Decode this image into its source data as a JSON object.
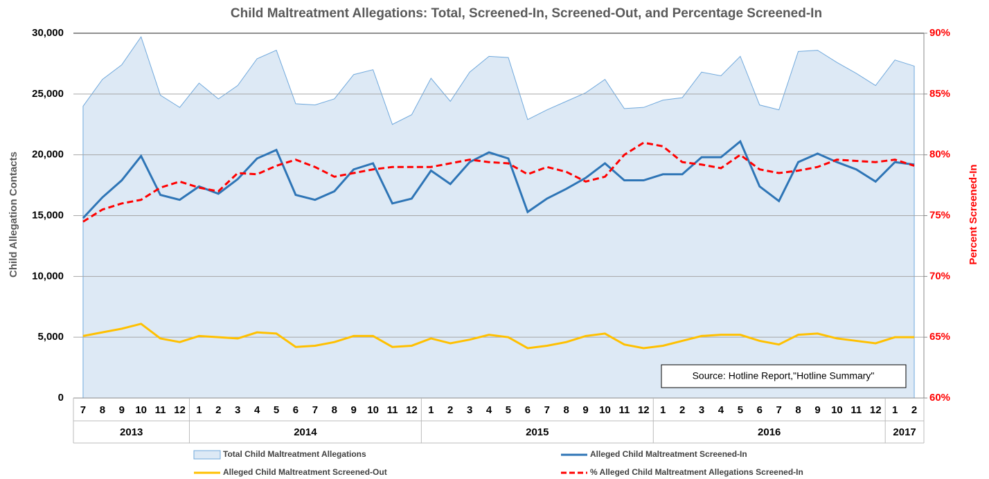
{
  "chart_data": {
    "type": "line",
    "title": "Child Maltreatment Allegations:  Total, Screened-In, Screened-Out, and Percentage Screened-In",
    "y_label": "Child Allegation Contacts",
    "y2_label": "Percent Screened-In",
    "annotation": "Source: Hotline Report,\"Hotline Summary\"",
    "categories": [
      "7",
      "8",
      "9",
      "10",
      "11",
      "12",
      "1",
      "2",
      "3",
      "4",
      "5",
      "6",
      "7",
      "8",
      "9",
      "10",
      "11",
      "12",
      "1",
      "2",
      "3",
      "4",
      "5",
      "6",
      "7",
      "8",
      "9",
      "10",
      "11",
      "12",
      "1",
      "2",
      "3",
      "4",
      "5",
      "6",
      "7",
      "8",
      "9",
      "10",
      "11",
      "12",
      "1",
      "2"
    ],
    "x_groups": [
      {
        "label": "2013",
        "count": 6
      },
      {
        "label": "2014",
        "count": 12
      },
      {
        "label": "2015",
        "count": 12
      },
      {
        "label": "2016",
        "count": 12
      },
      {
        "label": "2017",
        "count": 2
      }
    ],
    "ylim": [
      0,
      30000
    ],
    "yticks": [
      0,
      {
        "value": 5000,
        "label": "5,000"
      },
      {
        "value": 10000,
        "label": "10,000"
      },
      {
        "value": 15000,
        "label": "15,000"
      },
      {
        "value": 20000,
        "label": "20,000"
      },
      {
        "value": 25000,
        "label": "25,000"
      },
      {
        "value": 30000,
        "label": "30,000"
      }
    ],
    "y2lim": [
      60,
      90
    ],
    "y2ticks": [
      {
        "value": 60,
        "label": "60%"
      },
      {
        "value": 65,
        "label": "65%"
      },
      {
        "value": 70,
        "label": "70%"
      },
      {
        "value": 75,
        "label": "75%"
      },
      {
        "value": 80,
        "label": "80%"
      },
      {
        "value": 85,
        "label": "85%"
      },
      {
        "value": 90,
        "label": "90%"
      }
    ],
    "grid": true,
    "series": [
      {
        "name": "Total Child Maltreatment Allegations",
        "kind": "area",
        "color": "#6fa8dc",
        "fill": "#dde9f5",
        "values": [
          24000,
          26200,
          27400,
          29700,
          24900,
          23900,
          25900,
          24600,
          25700,
          27900,
          28600,
          24200,
          24100,
          24600,
          26600,
          27000,
          22500,
          23300,
          26300,
          24400,
          26800,
          28100,
          28000,
          22900,
          23700,
          24400,
          25100,
          26200,
          23800,
          23900,
          24500,
          24700,
          26800,
          26500,
          28100,
          24100,
          23700,
          28500,
          28600,
          27600,
          26700,
          25700,
          27800,
          27300
        ]
      },
      {
        "name": "Alleged Child Maltreatment Screened-In",
        "kind": "line",
        "color": "#2e75b6",
        "values": [
          14800,
          16500,
          17900,
          19900,
          16700,
          16300,
          17400,
          16800,
          18000,
          19700,
          20400,
          16700,
          16300,
          17000,
          18800,
          19300,
          16000,
          16400,
          18700,
          17600,
          19400,
          20200,
          19700,
          15300,
          16400,
          17200,
          18100,
          19300,
          17900,
          17900,
          18400,
          18400,
          19800,
          19800,
          21100,
          17400,
          16200,
          19400,
          20100,
          19400,
          18800,
          17800,
          19400,
          19200
        ]
      },
      {
        "name": "Alleged Child Maltreatment Screened-Out",
        "kind": "line",
        "color": "#ffc000",
        "values": [
          5100,
          5400,
          5700,
          6100,
          4900,
          4600,
          5100,
          5000,
          4900,
          5400,
          5300,
          4200,
          4300,
          4600,
          5100,
          5100,
          4200,
          4300,
          4900,
          4500,
          4800,
          5200,
          5000,
          4100,
          4300,
          4600,
          5100,
          5300,
          4400,
          4100,
          4300,
          4700,
          5100,
          5200,
          5200,
          4700,
          4400,
          5200,
          5300,
          4900,
          4700,
          4500,
          5000,
          5000
        ]
      },
      {
        "name": "% Alleged Child Maltreatment Allegations Screened-In",
        "kind": "dashed",
        "axis": "y2",
        "color": "#ff0000",
        "values": [
          74.5,
          75.5,
          76.0,
          76.3,
          77.3,
          77.8,
          77.3,
          77.0,
          78.5,
          78.4,
          79.1,
          79.6,
          79.0,
          78.2,
          78.5,
          78.8,
          79.0,
          79.0,
          79.0,
          79.3,
          79.6,
          79.4,
          79.3,
          78.4,
          79.0,
          78.6,
          77.8,
          78.2,
          80.0,
          81.0,
          80.7,
          79.4,
          79.2,
          78.9,
          80.0,
          78.8,
          78.5,
          78.7,
          79.0,
          79.6,
          79.5,
          79.4,
          79.6,
          79.1
        ]
      }
    ]
  }
}
